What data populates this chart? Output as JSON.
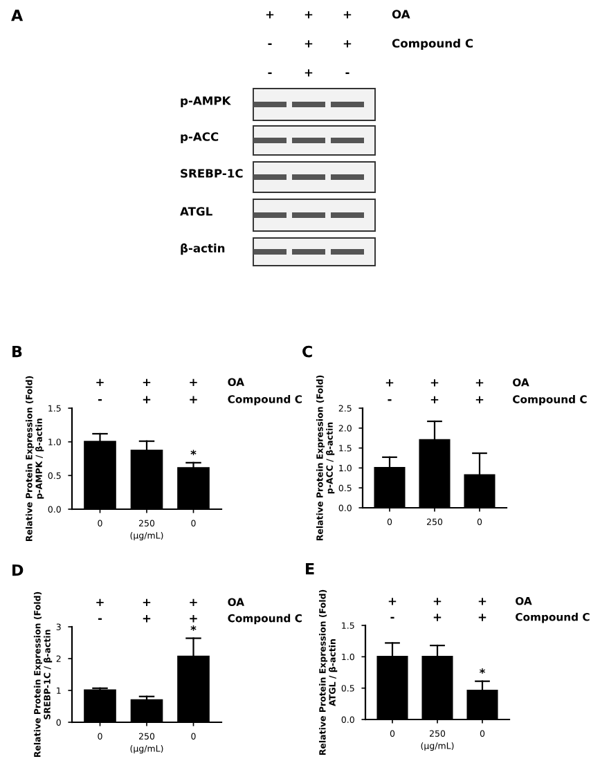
{
  "chart_data": [
    {
      "type": "other",
      "annotations": [
        "A",
        "+",
        "+",
        "+",
        "OA",
        "-",
        "+",
        "+",
        "Compound C",
        "-",
        "+",
        "-",
        "p-AMPK",
        "p-ACC",
        "SREBP-1C",
        "ATGL",
        "β-actin"
      ]
    },
    {
      "type": "bar",
      "categories": [
        "0",
        "250",
        "0"
      ],
      "values": [
        1.0,
        0.87,
        0.61
      ],
      "errors": [
        [
          1.0,
          1.12
        ],
        [
          0.87,
          1.01
        ],
        [
          0.61,
          0.69
        ]
      ],
      "color": "#000000",
      "ylim": [
        0,
        1.5
      ],
      "yticks": [
        {
          "value": 0,
          "label": "0.0"
        },
        {
          "value": 0.5,
          "label": "0.5"
        },
        {
          "value": 1,
          "label": "1.0"
        },
        {
          "value": 1.5,
          "label": "1.5"
        }
      ],
      "ylabel": "Relative Protein Expression (Fold)\np-AMPK / β-actin",
      "xlabel": "(μg/mL)",
      "grid": false,
      "annotations": [
        "B",
        "+",
        "+",
        "+",
        "OA",
        "-",
        "+",
        "+",
        "Compound C",
        "*"
      ]
    },
    {
      "type": "bar",
      "categories": [
        "0",
        "250",
        "0"
      ],
      "values": [
        1.0,
        1.7,
        0.82
      ],
      "errors": [
        [
          1.0,
          1.27
        ],
        [
          1.7,
          2.17
        ],
        [
          0.82,
          1.37
        ]
      ],
      "color": "#000000",
      "ylim": [
        0,
        2.5
      ],
      "yticks": [
        {
          "value": 0,
          "label": "0.0"
        },
        {
          "value": 0.5,
          "label": "0.5"
        },
        {
          "value": 1,
          "label": "1.0"
        },
        {
          "value": 1.5,
          "label": "1.5"
        },
        {
          "value": 2,
          "label": "2.0"
        },
        {
          "value": 2.5,
          "label": "2.5"
        }
      ],
      "ylabel": "Relative Protein Expression (Fold)\np-ACC / β-actin",
      "grid": false,
      "annotations": [
        "C",
        "+",
        "+",
        "+",
        "OA",
        "-",
        "+",
        "+",
        "Compound C"
      ]
    },
    {
      "type": "bar",
      "categories": [
        "0",
        "250",
        "0"
      ],
      "values": [
        1.0,
        0.69,
        2.06
      ],
      "errors": [
        [
          1.0,
          1.07
        ],
        [
          0.69,
          0.81
        ],
        [
          2.06,
          2.64
        ]
      ],
      "color": "#000000",
      "ylim": [
        0,
        3
      ],
      "yticks": [
        0,
        1,
        2,
        3
      ],
      "ylabel": "Relative Protein Expression (Fold)\nSREBP-1C / β-actin",
      "xlabel": "(μg/mL)",
      "grid": false,
      "annotations": [
        "D",
        "+",
        "+",
        "+",
        "OA",
        "-",
        "+",
        "+",
        "Compound C",
        "*"
      ]
    },
    {
      "type": "bar",
      "categories": [
        "0",
        "250",
        "0"
      ],
      "values": [
        1.0,
        1.0,
        0.46
      ],
      "errors": [
        [
          1.0,
          1.22
        ],
        [
          1.0,
          1.18
        ],
        [
          0.46,
          0.61
        ]
      ],
      "color": "#000000",
      "ylim": [
        0,
        1.5
      ],
      "yticks": [
        {
          "value": 0,
          "label": "0.0"
        },
        {
          "value": 0.5,
          "label": "0.5"
        },
        {
          "value": 1,
          "label": "1.0"
        },
        {
          "value": 1.5,
          "label": "1.5"
        }
      ],
      "ylabel": "Relative Protein Expression (Fold)\nATGL / β-actin",
      "xlabel": "(μg/mL)",
      "grid": false,
      "annotations": [
        "E",
        "+",
        "+",
        "+",
        "OA",
        "-",
        "+",
        "+",
        "Compound C",
        "*"
      ]
    }
  ]
}
